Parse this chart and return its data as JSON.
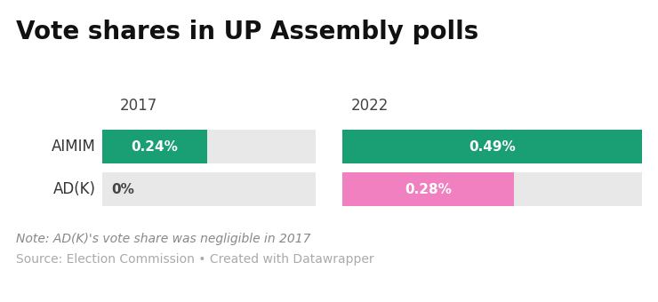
{
  "title": "Vote shares in UP Assembly polls",
  "background_color": "#ffffff",
  "parties": [
    "AIMIM",
    "AD(K)"
  ],
  "year_labels": [
    "2017",
    "2022"
  ],
  "values": {
    "AIMIM": {
      "2017": 0.24,
      "2022": 0.49
    },
    "AD(K)": {
      "2017": 0.0,
      "2022": 0.28
    }
  },
  "max_value": 0.49,
  "bar_colors": {
    "AIMIM": "#1a9e74",
    "AD(K)": "#f080c0"
  },
  "bg_bar_color": "#e8e8e8",
  "label_color_on_bar": "#ffffff",
  "label_color_zero": "#444444",
  "note_text": "Note: AD(K)'s vote share was negligible in 2017",
  "source_text": "Source: Election Commission • Created with Datawrapper",
  "note_color": "#888888",
  "source_color": "#aaaaaa",
  "title_fontsize": 20,
  "year_label_fontsize": 12,
  "party_label_fontsize": 12,
  "bar_label_fontsize": 11,
  "note_fontsize": 10,
  "source_fontsize": 10
}
